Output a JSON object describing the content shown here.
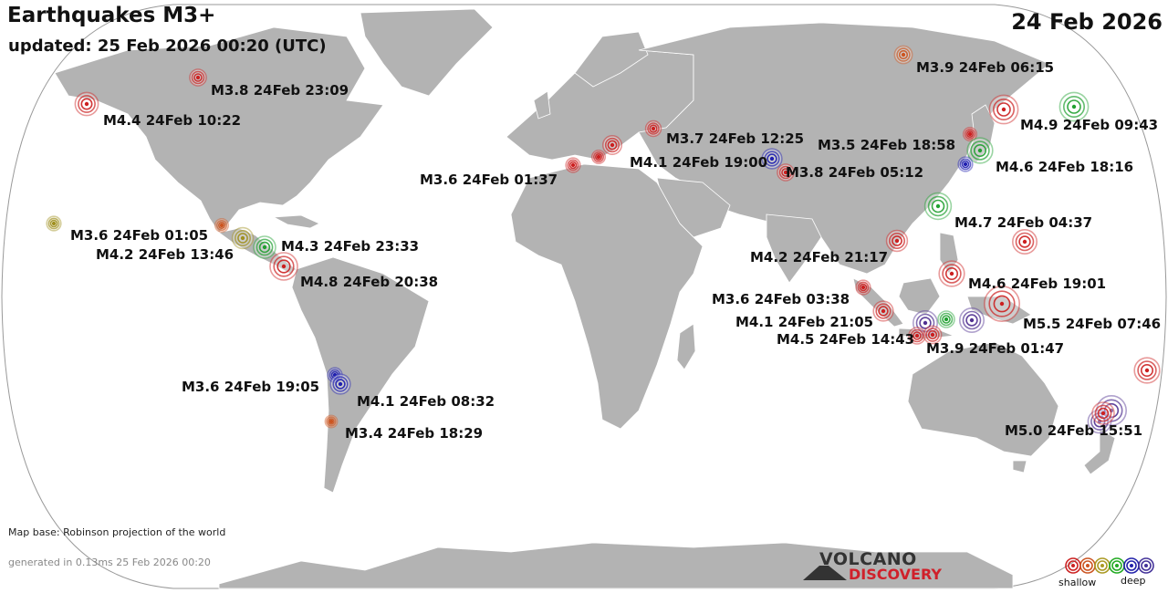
{
  "header": {
    "title": "Earthquakes M3+",
    "updated": "updated: 25 Feb 2026 00:20 (UTC)",
    "date": "24 Feb 2026"
  },
  "footer": {
    "map_base": "Map base: Robinson projection of the world",
    "generated": "generated in 0.13ms 25 Feb 2026 00:20"
  },
  "logo": {
    "line1": "VOLCANO",
    "line2": "DISCOVERY"
  },
  "legend": {
    "shallow": "shallow",
    "deep": "deep",
    "colors": [
      "#cc2222",
      "#cc5522",
      "#aa9922",
      "#22aa22",
      "#2222aa",
      "#443399"
    ]
  },
  "depth_colors": {
    "red": "#cc2020",
    "orange": "#cc5520",
    "olive": "#a09020",
    "green": "#20a030",
    "blue": "#2020b0",
    "purple": "#503090"
  },
  "quakes": [
    {
      "label": "M3.8 24Feb 23:09",
      "mag": 3.8,
      "depth": "red"
    },
    {
      "label": "M4.4 24Feb 10:22",
      "mag": 4.4,
      "depth": "red"
    },
    {
      "label": "M3.6 24Feb 01:05",
      "mag": 3.6,
      "depth": "olive"
    },
    {
      "label": "",
      "mag": 3.5,
      "depth": "orange"
    },
    {
      "label": "M4.2 24Feb 13:46",
      "mag": 4.2,
      "depth": "olive"
    },
    {
      "label": "M4.3 24Feb 23:33",
      "mag": 4.3,
      "depth": "green"
    },
    {
      "label": "M4.8 24Feb 20:38",
      "mag": 4.8,
      "depth": "red"
    },
    {
      "label": "M3.6 24Feb 19:05",
      "mag": 3.6,
      "depth": "blue"
    },
    {
      "label": "M4.1 24Feb 08:32",
      "mag": 4.1,
      "depth": "blue"
    },
    {
      "label": "M3.4 24Feb 18:29",
      "mag": 3.4,
      "depth": "orange"
    },
    {
      "label": "M3.6 24Feb 01:37",
      "mag": 3.6,
      "depth": "red"
    },
    {
      "label": "",
      "mag": 3.5,
      "depth": "red"
    },
    {
      "label": "",
      "mag": 4.0,
      "depth": "red"
    },
    {
      "label": "M3.7 24Feb 12:25",
      "mag": 3.7,
      "depth": "red"
    },
    {
      "label": "M4.1 24Feb 19:00",
      "mag": 4.1,
      "depth": "blue"
    },
    {
      "label": "M3.8 24Feb 05:12",
      "mag": 3.8,
      "depth": "red"
    },
    {
      "label": "M3.9 24Feb 06:15",
      "mag": 3.9,
      "depth": "orange"
    },
    {
      "label": "M4.9 24Feb 09:43",
      "mag": 4.9,
      "depth": "red"
    },
    {
      "label": "",
      "mag": 4.9,
      "depth": "green"
    },
    {
      "label": "M3.5 24Feb 18:58",
      "mag": 3.5,
      "depth": "red"
    },
    {
      "label": "M4.6 24Feb 18:16",
      "mag": 4.6,
      "depth": "green"
    },
    {
      "label": "",
      "mag": 3.6,
      "depth": "blue"
    },
    {
      "label": "M4.7 24Feb 04:37",
      "mag": 4.7,
      "depth": "green"
    },
    {
      "label": "M4.2 24Feb 21:17",
      "mag": 4.2,
      "depth": "red"
    },
    {
      "label": "",
      "mag": 4.5,
      "depth": "red"
    },
    {
      "label": "M4.6 24Feb 19:01",
      "mag": 4.6,
      "depth": "red"
    },
    {
      "label": "M3.6 24Feb 03:38",
      "mag": 3.6,
      "depth": "red"
    },
    {
      "label": "M4.1 24Feb 21:05",
      "mag": 4.1,
      "depth": "red"
    },
    {
      "label": "M4.5 24Feb 14:43",
      "mag": 4.5,
      "depth": "purple"
    },
    {
      "label": "",
      "mag": 3.8,
      "depth": "red"
    },
    {
      "label": "",
      "mag": 3.8,
      "depth": "green"
    },
    {
      "label": "M3.9 24Feb 01:47",
      "mag": 3.9,
      "depth": "red"
    },
    {
      "label": "",
      "mag": 4.5,
      "depth": "purple"
    },
    {
      "label": "M5.5 24Feb 07:46",
      "mag": 5.5,
      "depth": "red"
    },
    {
      "label": "",
      "mag": 4.6,
      "depth": "red"
    },
    {
      "label": "M5.0 24Feb 15:51",
      "mag": 5.0,
      "depth": "purple"
    },
    {
      "label": "",
      "mag": 4.4,
      "depth": "purple"
    },
    {
      "label": "",
      "mag": 4.3,
      "depth": "red"
    }
  ]
}
